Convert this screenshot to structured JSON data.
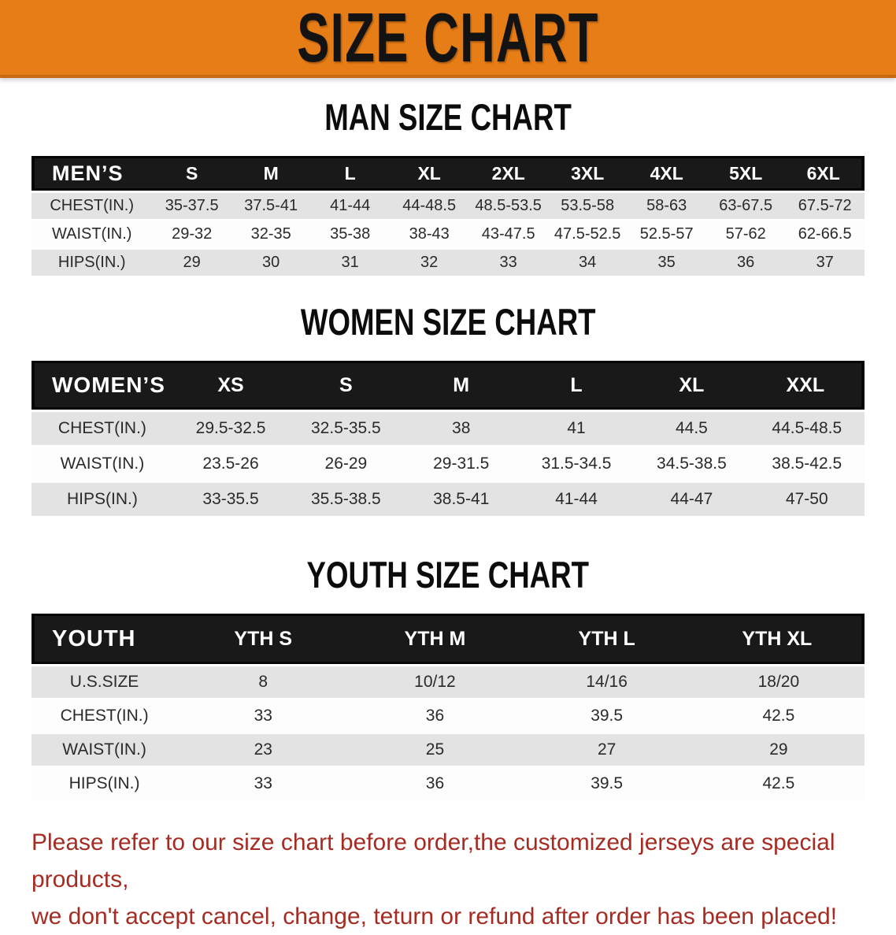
{
  "banner": {
    "title": "SIZE CHART"
  },
  "colors": {
    "banner_bg": "#E67D17",
    "banner_text": "#131313",
    "header_bar_bg": "#191919",
    "header_bar_text": "#FFFFFF",
    "row_gray": "#E3E3E3",
    "row_white": "#FDFDFD",
    "cell_text": "#2A2A2A",
    "footer_red": "#A52C23"
  },
  "sections": [
    {
      "heading": "MAN SIZE CHART",
      "table": {
        "header": [
          "MEN’S",
          "S",
          "M",
          "L",
          "XL",
          "2XL",
          "3XL",
          "4XL",
          "5XL",
          "6XL"
        ],
        "rows": [
          {
            "label": "CHEST(IN.)",
            "values": [
              "35-37.5",
              "37.5-41",
              "41-44",
              "44-48.5",
              "48.5-53.5",
              "53.5-58",
              "58-63",
              "63-67.5",
              "67.5-72"
            ]
          },
          {
            "label": "WAIST(IN.)",
            "values": [
              "29-32",
              "32-35",
              "35-38",
              "38-43",
              "43-47.5",
              "47.5-52.5",
              "52.5-57",
              "57-62",
              "62-66.5"
            ]
          },
          {
            "label": "HIPS(IN.)",
            "values": [
              "29",
              "30",
              "31",
              "32",
              "33",
              "34",
              "35",
              "36",
              "37"
            ]
          }
        ]
      }
    },
    {
      "heading": "WOMEN SIZE CHART",
      "table": {
        "header": [
          "WOMEN’S",
          "XS",
          "S",
          "M",
          "L",
          "XL",
          "XXL"
        ],
        "rows": [
          {
            "label": "CHEST(IN.)",
            "values": [
              "29.5-32.5",
              "32.5-35.5",
              "38",
              "41",
              "44.5",
              "44.5-48.5"
            ]
          },
          {
            "label": "WAIST(IN.)",
            "values": [
              "23.5-26",
              "26-29",
              "29-31.5",
              "31.5-34.5",
              "34.5-38.5",
              "38.5-42.5"
            ]
          },
          {
            "label": "HIPS(IN.)",
            "values": [
              "33-35.5",
              "35.5-38.5",
              "38.5-41",
              "41-44",
              "44-47",
              "47-50"
            ]
          }
        ]
      }
    },
    {
      "heading": "YOUTH SIZE CHART",
      "table": {
        "header": [
          "YOUTH",
          "YTH S",
          "YTH M",
          "YTH L",
          "YTH XL"
        ],
        "rows": [
          {
            "label": "U.S.SIZE",
            "values": [
              "8",
              "10/12",
              "14/16",
              "18/20"
            ]
          },
          {
            "label": "CHEST(IN.)",
            "values": [
              "33",
              "36",
              "39.5",
              "42.5"
            ]
          },
          {
            "label": "WAIST(IN.)",
            "values": [
              "23",
              "25",
              "27",
              "29"
            ]
          },
          {
            "label": "HIPS(IN.)",
            "values": [
              "33",
              "36",
              "39.5",
              "42.5"
            ]
          }
        ]
      }
    }
  ],
  "footer": {
    "line1": "Please refer to our size chart before order,the customized jerseys are special products,",
    "line2": "we don't accept cancel, change, teturn or refund after order has been placed!"
  }
}
